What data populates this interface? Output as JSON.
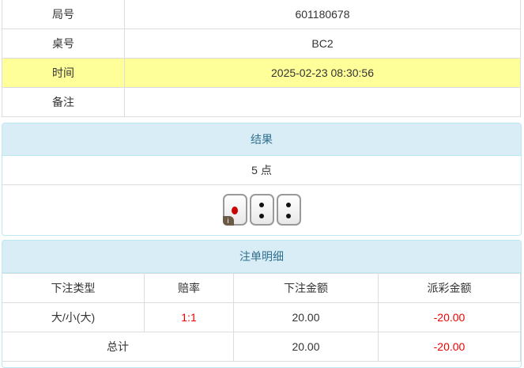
{
  "info": [
    {
      "label": "局号",
      "value": "601180678"
    },
    {
      "label": "桌号",
      "value": "BC2"
    },
    {
      "label": "时间",
      "value": "2025-02-23 08:30:56"
    },
    {
      "label": "备注",
      "value": ""
    }
  ],
  "result": {
    "title": "结果",
    "points": "5 点",
    "dice": [
      1,
      2,
      2
    ],
    "info_badge": "i"
  },
  "bets": {
    "title": "注单明细",
    "headers": [
      "下注类型",
      "赔率",
      "下注金额",
      "派彩金额"
    ],
    "rows": [
      {
        "type": "大/小(大)",
        "odds": "1:1",
        "amount": "20.00",
        "payout": "-20.00"
      }
    ],
    "total": {
      "label": "总计",
      "amount": "20.00",
      "payout": "-20.00"
    }
  },
  "colors": {
    "highlight": "#ffff99",
    "panel_header": "#d9edf7",
    "negative": "#ee0000"
  }
}
